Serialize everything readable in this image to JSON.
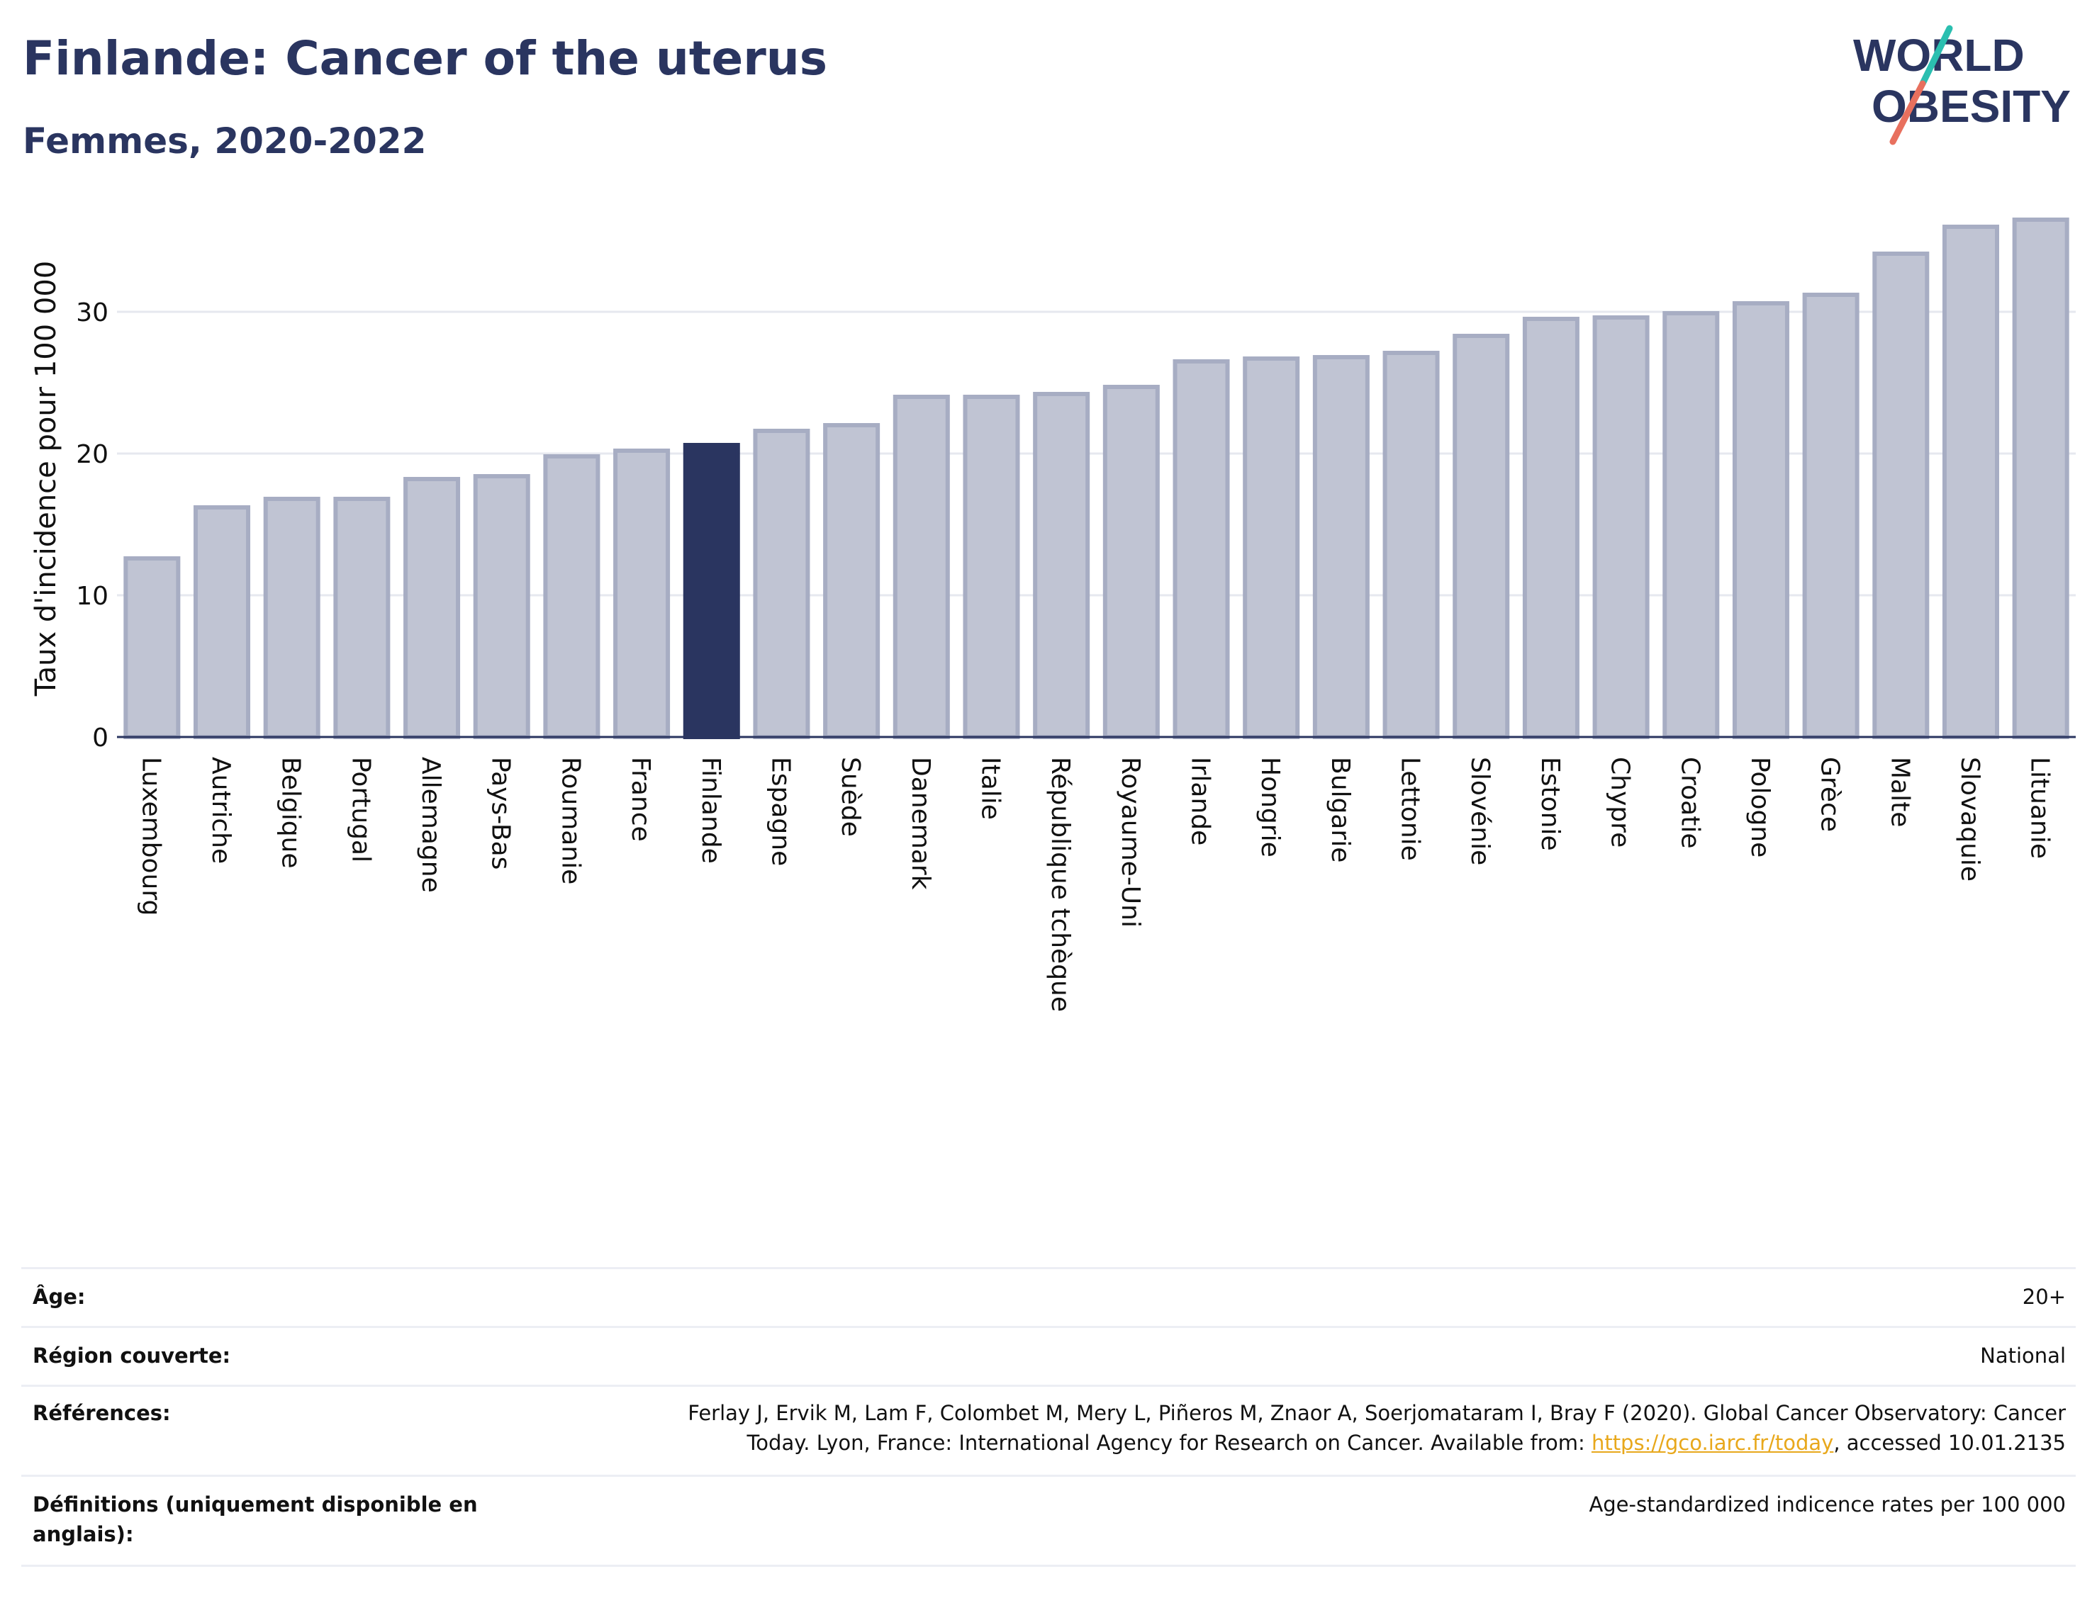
{
  "header": {
    "title": "Finlande: Cancer of the uterus",
    "subtitle": "Femmes, 2020-2022"
  },
  "logo": {
    "line1": "WORLD",
    "line2": "OBESITY",
    "colors": {
      "text": "#2a3560",
      "teal": "#2bbfb0",
      "coral": "#e8705e"
    }
  },
  "chart_data": {
    "type": "bar",
    "ylabel": "Taux d'incidence pour 100 000",
    "xlabel": "",
    "ylim": [
      0,
      37.5
    ],
    "yticks": [
      0,
      10,
      20,
      30
    ],
    "grid": true,
    "highlight": "Finlande",
    "colors": {
      "bar": "#c0c4d3",
      "bar_border": "#a7adc3",
      "highlight": "#2a3560",
      "grid": "#e6e8ef",
      "axis": "#2a3560"
    },
    "categories": [
      "Luxembourg",
      "Autriche",
      "Belgique",
      "Portugal",
      "Allemagne",
      "Pays-Bas",
      "Roumanie",
      "France",
      "Finlande",
      "Espagne",
      "Suède",
      "Danemark",
      "Italie",
      "République tchèque",
      "Royaume-Uni",
      "Irlande",
      "Hongrie",
      "Bulgarie",
      "Lettonie",
      "Slovénie",
      "Estonie",
      "Chypre",
      "Croatie",
      "Pologne",
      "Grèce",
      "Malte",
      "Slovaquie",
      "Lituanie"
    ],
    "values": [
      12.6,
      16.2,
      16.8,
      16.8,
      18.2,
      18.4,
      19.8,
      20.2,
      20.6,
      21.6,
      22.0,
      24.0,
      24.0,
      24.2,
      24.7,
      26.5,
      26.7,
      26.8,
      27.1,
      28.3,
      29.5,
      29.6,
      29.9,
      30.6,
      31.2,
      34.1,
      36.0,
      36.5
    ]
  },
  "info": {
    "age_label": "Âge:",
    "age_value": "20+",
    "region_label": "Région couverte:",
    "region_value": "National",
    "references_label": "Références:",
    "references_line1": "Ferlay J, Ervik M, Lam F, Colombet M, Mery L, Piñeros M, Znaor A, Soerjomataram I, Bray F (2020). Global Cancer Observatory: Cancer",
    "references_line2_pre": "Today. Lyon, France: International Agency for Research on Cancer. Available from: ",
    "references_link": "https://gco.iarc.fr/today",
    "references_line2_post": ", accessed 10.01.2135",
    "definitions_label": "Définitions (uniquement disponible en anglais):",
    "definitions_value": "Age-standardized indicence rates per 100 000"
  }
}
